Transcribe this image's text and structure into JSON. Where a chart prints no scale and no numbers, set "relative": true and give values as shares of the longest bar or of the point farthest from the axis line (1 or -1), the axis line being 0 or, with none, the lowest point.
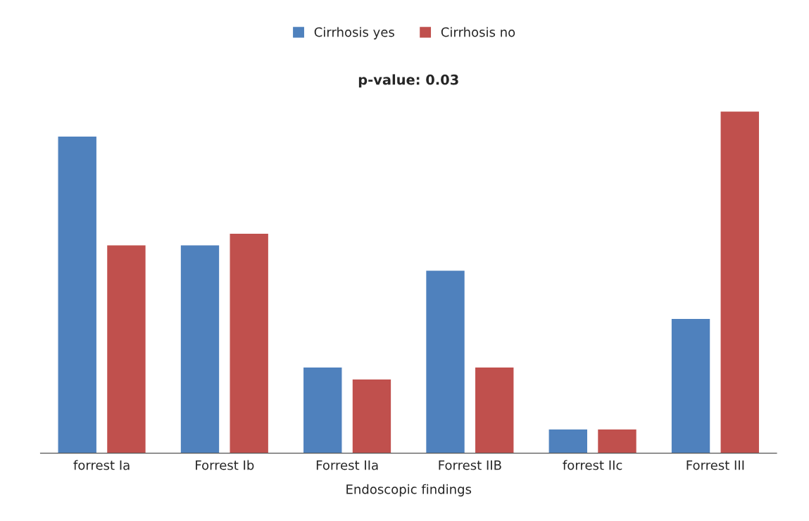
{
  "chart_data": {
    "type": "bar",
    "title": "p-value: 0.03",
    "xlabel": "Endoscopic findings",
    "categories": [
      "forrest Ia",
      "Forrest Ib",
      "Forrest IIa",
      "Forrest IIB",
      "forrest IIc",
      "Forrest III"
    ],
    "relative": true,
    "legend": "top",
    "grid": false,
    "series": [
      {
        "name": "Cirrhosis yes",
        "color": "#4f81bd",
        "values": [
          0.927,
          0.609,
          0.252,
          0.535,
          0.071,
          0.394
        ]
      },
      {
        "name": "Cirrhosis no",
        "color": "#c0504d",
        "values": [
          0.609,
          0.643,
          0.217,
          0.252,
          0.071,
          1.0
        ]
      }
    ]
  }
}
